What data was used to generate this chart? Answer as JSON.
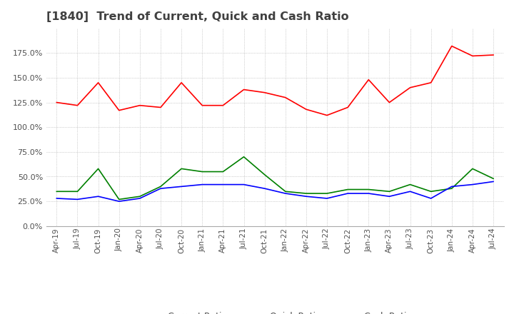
{
  "title": "[1840]  Trend of Current, Quick and Cash Ratio",
  "title_color": "#404040",
  "background_color": "#ffffff",
  "plot_bg_color": "#ffffff",
  "grid_color": "#aaaaaa",
  "x_labels": [
    "Apr-19",
    "Jul-19",
    "Oct-19",
    "Jan-20",
    "Apr-20",
    "Jul-20",
    "Oct-20",
    "Jan-21",
    "Apr-21",
    "Jul-21",
    "Oct-21",
    "Jan-22",
    "Apr-22",
    "Jul-22",
    "Oct-22",
    "Jan-23",
    "Apr-23",
    "Jul-23",
    "Oct-23",
    "Jan-24",
    "Apr-24",
    "Jul-24"
  ],
  "current_ratio": [
    1.25,
    1.22,
    1.45,
    1.17,
    1.22,
    1.2,
    1.45,
    1.22,
    1.22,
    1.38,
    1.35,
    1.3,
    1.18,
    1.12,
    1.2,
    1.48,
    1.25,
    1.4,
    1.45,
    1.82,
    1.72,
    1.73
  ],
  "quick_ratio": [
    0.35,
    0.35,
    0.58,
    0.27,
    0.3,
    0.4,
    0.58,
    0.55,
    0.55,
    0.7,
    0.52,
    0.35,
    0.33,
    0.33,
    0.37,
    0.37,
    0.35,
    0.42,
    0.35,
    0.38,
    0.58,
    0.48
  ],
  "cash_ratio": [
    0.28,
    0.27,
    0.3,
    0.25,
    0.28,
    0.38,
    0.4,
    0.42,
    0.42,
    0.42,
    0.38,
    0.33,
    0.3,
    0.28,
    0.33,
    0.33,
    0.3,
    0.35,
    0.28,
    0.4,
    0.42,
    0.45
  ],
  "current_color": "#ff0000",
  "quick_color": "#008000",
  "cash_color": "#0000ff",
  "ylim": [
    0.0,
    2.0
  ],
  "yticks": [
    0.0,
    0.25,
    0.5,
    0.75,
    1.0,
    1.25,
    1.5,
    1.75
  ],
  "legend_labels": [
    "Current Ratio",
    "Quick Ratio",
    "Cash Ratio"
  ]
}
